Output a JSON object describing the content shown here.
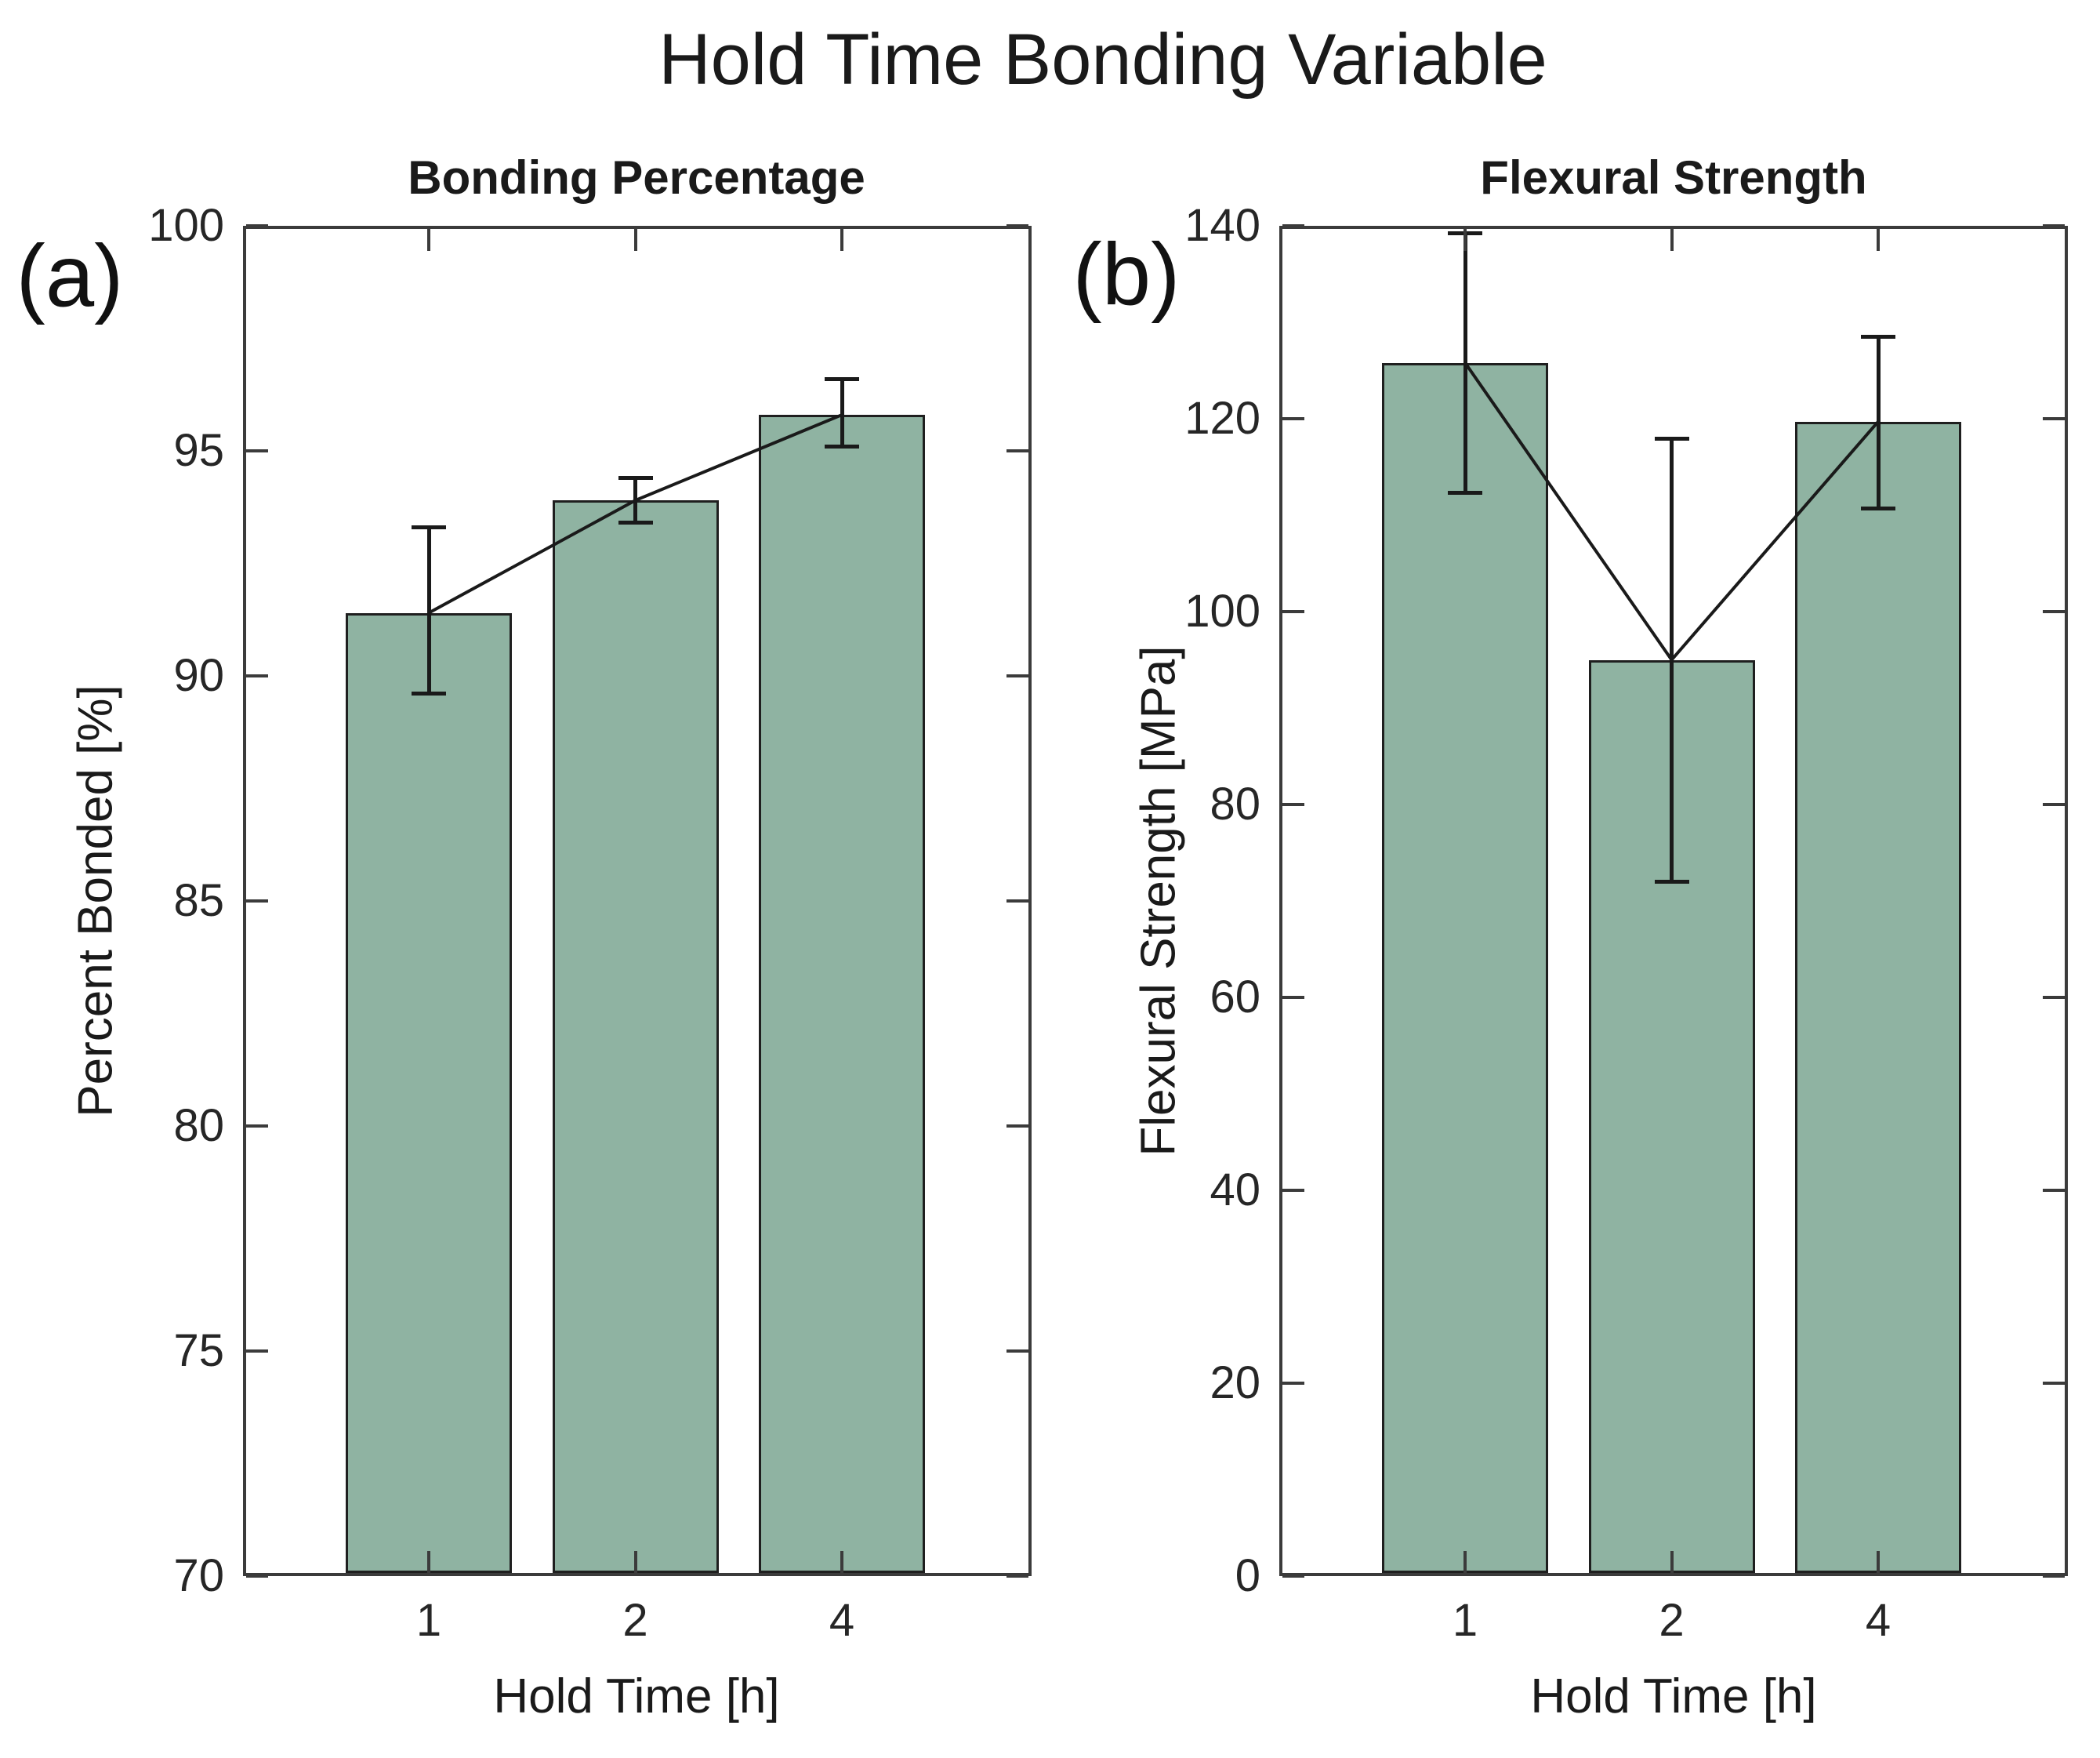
{
  "figure": {
    "title": "Hold Time Bonding Variable",
    "background_color": "#ffffff",
    "bar_fill_color": "#8fb3a2",
    "bar_edge_color": "#1f1f1f",
    "axis_color": "#3b3b3b",
    "text_color": "#1a1a1a",
    "error_bar_color": "#1a1a1a",
    "trend_line_color": "#1a1a1a"
  },
  "chart_data": [
    {
      "type": "bar",
      "panel_label": "(a)",
      "title": "Bonding Percentage",
      "xlabel": "Hold Time [h]",
      "ylabel": "Percent Bonded [%]",
      "categories": [
        "1",
        "2",
        "4"
      ],
      "values": [
        91.4,
        93.9,
        95.8
      ],
      "error_low": [
        89.6,
        93.4,
        95.1
      ],
      "error_high": [
        93.3,
        94.4,
        96.6
      ],
      "overlay_line_through_bar_tops": true,
      "grid": false,
      "legend": "none",
      "ylim": [
        70,
        100
      ],
      "yticks": [
        70,
        75,
        80,
        85,
        90,
        95,
        100
      ]
    },
    {
      "type": "bar",
      "panel_label": "(b)",
      "title": "Flexural Strength",
      "xlabel": "Hold Time [h]",
      "ylabel": "Flexural Strength [MPa]",
      "categories": [
        "1",
        "2",
        "4"
      ],
      "values": [
        125.8,
        95.0,
        119.7
      ],
      "error_low": [
        112.3,
        72.0,
        110.7
      ],
      "error_high": [
        139.2,
        117.9,
        128.5
      ],
      "overlay_line_through_bar_tops": true,
      "grid": false,
      "legend": "none",
      "ylim": [
        0,
        140
      ],
      "yticks": [
        0,
        20,
        40,
        60,
        80,
        100,
        120,
        140
      ]
    }
  ]
}
